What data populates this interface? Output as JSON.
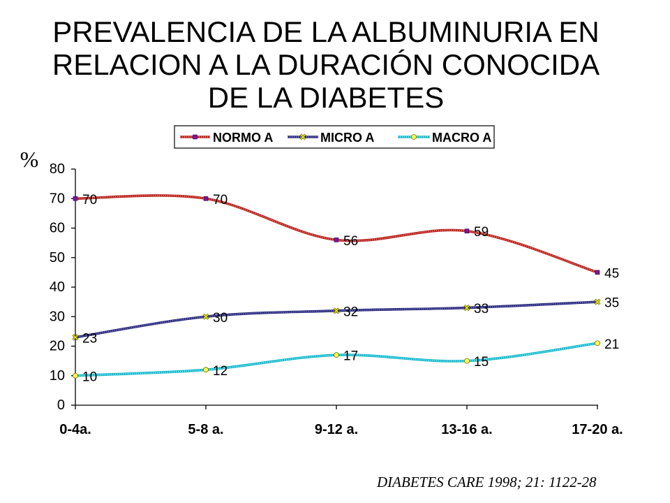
{
  "chart_data": {
    "type": "line",
    "title": "PREVALENCIA DE LA ALBUMINURIA EN RELACION A LA DURACIÓN CONOCIDA DE LA DIABETES",
    "ylabel": "%",
    "categories": [
      "0-4a.",
      "5-8 a.",
      "9-12 a.",
      "13-16 a.",
      "17-20 a."
    ],
    "ylim": [
      0,
      80
    ],
    "yticks": [
      0,
      10,
      20,
      30,
      40,
      50,
      60,
      70,
      80
    ],
    "grid": false,
    "smooth": true,
    "data_labels": true,
    "legend": "top",
    "series": [
      {
        "name": "NORMO A",
        "values": [
          70,
          70,
          56,
          59,
          45
        ],
        "color": "#b8261f",
        "highlight_color": "#f29a90",
        "marker": "square",
        "marker_color": "#7a1a9a"
      },
      {
        "name": "MICRO A",
        "values": [
          23,
          30,
          32,
          33,
          35
        ],
        "color": "#2b2b7d",
        "highlight_color": "#9c9cdc",
        "marker": "x",
        "marker_color": "#e8e800"
      },
      {
        "name": "MACRO A",
        "values": [
          10,
          12,
          17,
          15,
          21
        ],
        "color": "#14b9cc",
        "highlight_color": "#c9f5fb",
        "marker": "circle",
        "marker_color": "#ffff4d"
      }
    ]
  },
  "citation": "DIABETES CARE 1998; 21: 1122-28"
}
